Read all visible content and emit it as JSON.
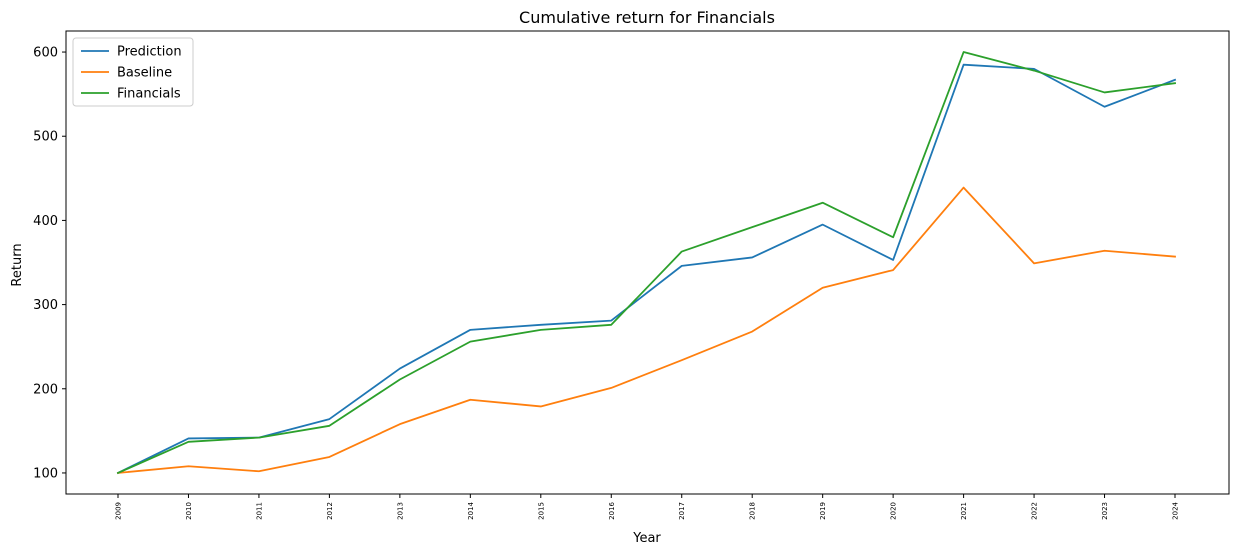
{
  "chart_data": {
    "type": "line",
    "title": "Cumulative return for Financials",
    "xlabel": "Year",
    "ylabel": "Return",
    "x": [
      "2009",
      "2010",
      "2011",
      "2012",
      "2013",
      "2014",
      "2015",
      "2016",
      "2017",
      "2018",
      "2019",
      "2020",
      "2021",
      "2022",
      "2023",
      "2024"
    ],
    "y_ticks": [
      100,
      200,
      300,
      400,
      500,
      600
    ],
    "ylim": [
      75,
      625
    ],
    "grid": false,
    "legend_position": "top-left",
    "series": [
      {
        "name": "Prediction",
        "color": "#1f77b4",
        "values": [
          100,
          141,
          142,
          164,
          224,
          270,
          276,
          281,
          346,
          356,
          395,
          353,
          585,
          580,
          535,
          567
        ]
      },
      {
        "name": "Baseline",
        "color": "#ff7f0e",
        "values": [
          100,
          108,
          102,
          119,
          158,
          187,
          179,
          201,
          234,
          268,
          320,
          341,
          439,
          349,
          364,
          357
        ]
      },
      {
        "name": "Financials",
        "color": "#2ca02c",
        "values": [
          100,
          137,
          142,
          156,
          211,
          256,
          270,
          276,
          363,
          392,
          421,
          380,
          600,
          578,
          552,
          563
        ]
      }
    ]
  }
}
